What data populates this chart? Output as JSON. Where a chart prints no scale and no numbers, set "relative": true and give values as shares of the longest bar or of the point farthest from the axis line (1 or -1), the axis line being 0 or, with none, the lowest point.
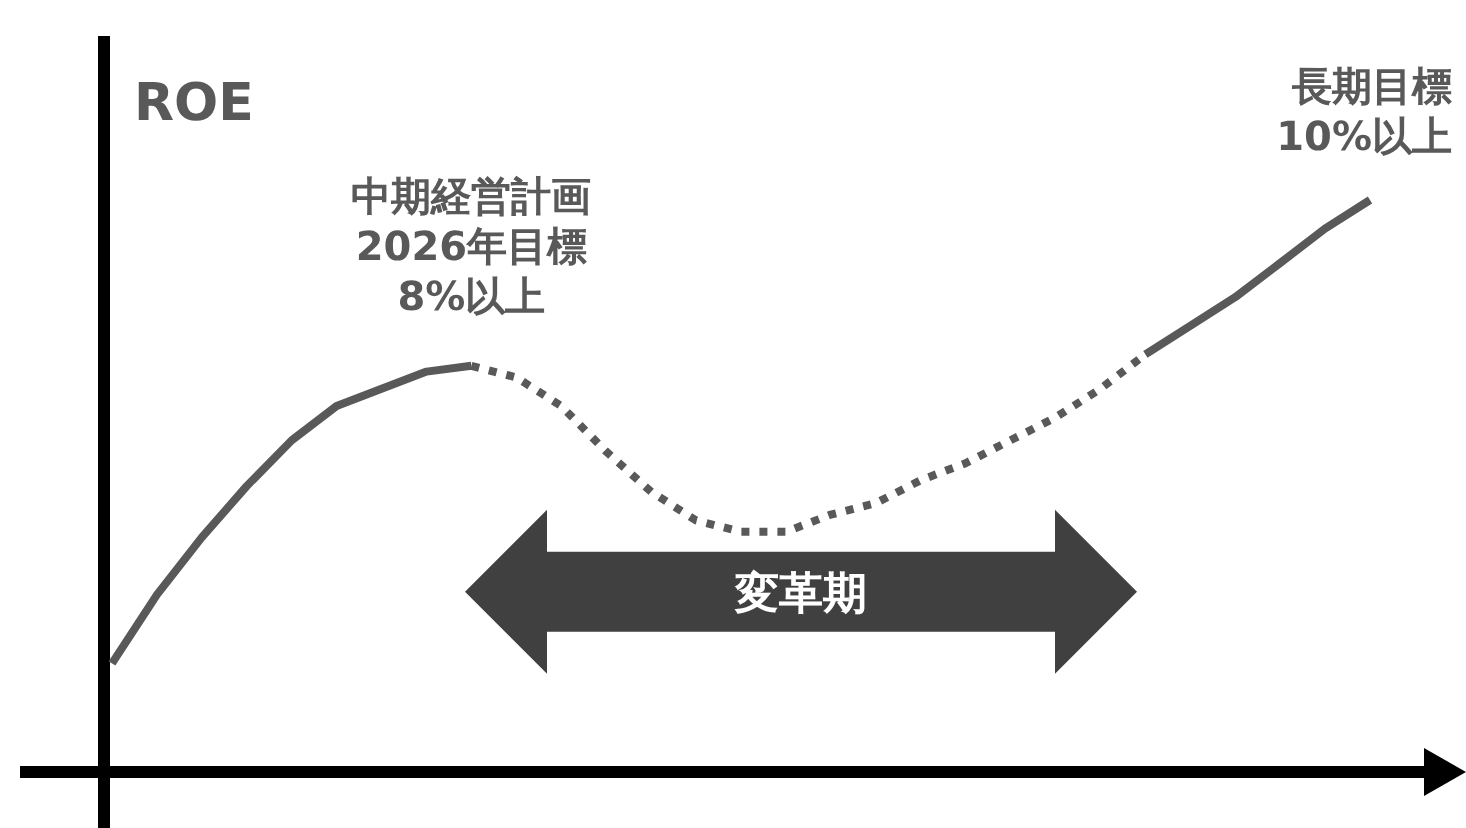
{
  "chart_data": {
    "type": "line",
    "relative": true,
    "ylabel": "ROE",
    "categories": [
      null,
      null,
      null,
      null,
      null,
      null,
      null,
      null,
      null,
      null,
      null,
      null,
      null,
      null,
      null,
      null,
      null,
      null,
      null,
      null,
      null,
      null,
      null,
      null,
      null,
      null,
      null,
      null,
      null
    ],
    "series": [
      {
        "color": "#595959",
        "line_style": "solid",
        "values": [
          0.19,
          0.31,
          0.41,
          0.5,
          0.58,
          0.64,
          0.67,
          0.7,
          0.71,
          null,
          null,
          null,
          null,
          null,
          null,
          null,
          null,
          null,
          null,
          null,
          null,
          null,
          null,
          null,
          null,
          null,
          null,
          null,
          null
        ]
      },
      {
        "color": "#595959",
        "line_style": "dotted",
        "values": [
          null,
          null,
          null,
          null,
          null,
          null,
          null,
          null,
          0.71,
          0.69,
          0.64,
          0.56,
          0.49,
          0.44,
          0.42,
          0.42,
          0.45,
          0.47,
          0.51,
          0.54,
          0.58,
          0.62,
          0.67,
          0.73,
          null,
          null,
          null,
          null,
          null
        ]
      },
      {
        "color": "#595959",
        "line_style": "solid",
        "values": [
          null,
          null,
          null,
          null,
          null,
          null,
          null,
          null,
          null,
          null,
          null,
          null,
          null,
          null,
          null,
          null,
          null,
          null,
          null,
          null,
          null,
          null,
          null,
          0.73,
          0.78,
          0.83,
          0.89,
          0.95,
          1
        ]
      }
    ],
    "annotations": [
      "中期経営計画\n2026年目標\n8%以上",
      "長期目標\n10%以上",
      "変革期"
    ],
    "marker": "none"
  }
}
